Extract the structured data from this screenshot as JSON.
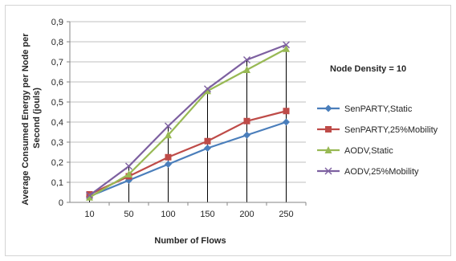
{
  "chart_data": {
    "type": "line",
    "categories": [
      "10",
      "50",
      "100",
      "150",
      "200",
      "250"
    ],
    "series": [
      {
        "name": "SenPARTY,Static",
        "color": "#4a7ebb",
        "marker": "diamond",
        "values": [
          0.03,
          0.11,
          0.19,
          0.27,
          0.335,
          0.4
        ]
      },
      {
        "name": "SenPARTY,25%Mobility",
        "color": "#be4b48",
        "marker": "square",
        "values": [
          0.04,
          0.13,
          0.225,
          0.305,
          0.405,
          0.455
        ]
      },
      {
        "name": "AODV,Static",
        "color": "#98b954",
        "marker": "triangle",
        "values": [
          0.025,
          0.14,
          0.335,
          0.555,
          0.66,
          0.765
        ]
      },
      {
        "name": "AODV,25%Mobility",
        "color": "#7d60a0",
        "marker": "x",
        "values": [
          0.035,
          0.18,
          0.38,
          0.565,
          0.71,
          0.785
        ]
      }
    ],
    "xlabel": "Number of Flows",
    "ylabel": "Average Consumed Energy per Node per Second (jouls)",
    "ylabel_lines": [
      "Average Consumed Energy per Node per",
      "Second (jouls)"
    ],
    "ylim": [
      0,
      0.9
    ],
    "yticks": [
      "0",
      "0,1",
      "0,2",
      "0,3",
      "0,4",
      "0,5",
      "0,6",
      "0,7",
      "0,8",
      "0,9"
    ],
    "grid": "horizontal",
    "drop_lines": true,
    "legend_position": "right",
    "annotation": "Node Density = 10"
  }
}
